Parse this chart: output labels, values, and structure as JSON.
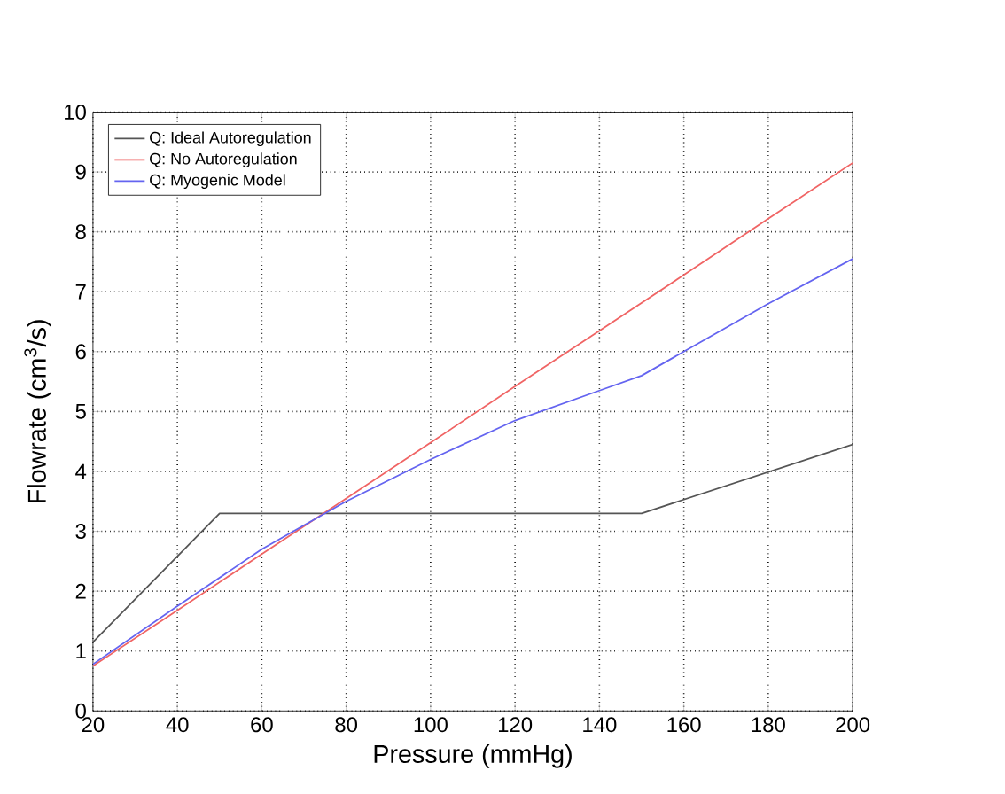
{
  "chart_data": {
    "type": "line",
    "xlabel": "Pressure (mmHg)",
    "ylabel": "Flowrate (cm$^{3}$/s)",
    "xlim": [
      20,
      200
    ],
    "ylim": [
      0,
      10
    ],
    "xticks": [
      20,
      40,
      60,
      80,
      100,
      120,
      140,
      160,
      180,
      200
    ],
    "yticks": [
      0,
      1,
      2,
      3,
      4,
      5,
      6,
      7,
      8,
      9,
      10
    ],
    "grid": true,
    "legend": "top left",
    "series": [
      {
        "name": "Q: Ideal Autoregulation",
        "color": "#555555",
        "x": [
          20,
          50,
          150,
          200
        ],
        "values": [
          1.15,
          3.3,
          3.3,
          4.45
        ]
      },
      {
        "name": "Q: No Autoregulation",
        "color": "#f06464",
        "x": [
          20,
          40,
          60,
          80,
          100,
          120,
          140,
          160,
          180,
          200
        ],
        "values": [
          0.75,
          1.68,
          2.62,
          3.55,
          4.48,
          5.42,
          6.35,
          7.28,
          8.22,
          9.15
        ]
      },
      {
        "name": "Q: Myogenic Model",
        "color": "#6464f0",
        "x": [
          20,
          40,
          60,
          75,
          80,
          100,
          120,
          140,
          150,
          160,
          180,
          200
        ],
        "values": [
          0.78,
          1.75,
          2.7,
          3.3,
          3.5,
          4.2,
          4.85,
          5.35,
          5.6,
          6.0,
          6.8,
          7.55
        ]
      }
    ]
  }
}
